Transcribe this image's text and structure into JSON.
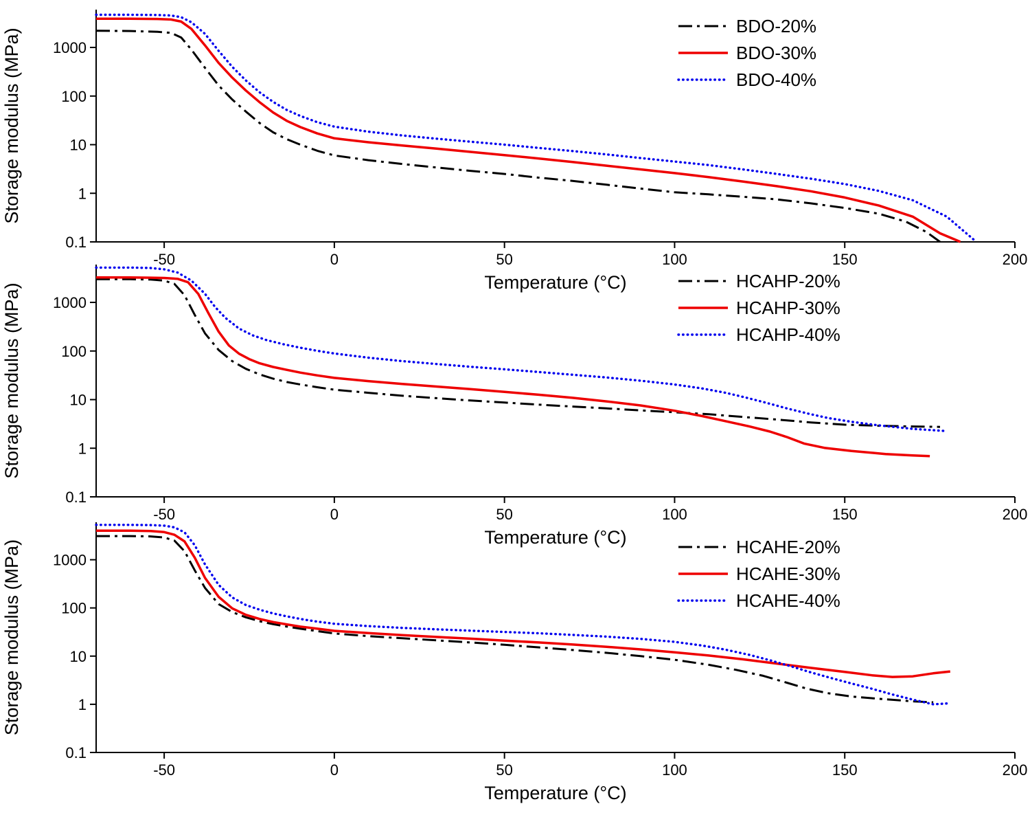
{
  "figure": {
    "background": "#ffffff",
    "axis_color": "#000000"
  },
  "chart_data": [
    {
      "type": "line",
      "title": "",
      "xlabel": "Temperature (°C)",
      "ylabel": "Storage modulus (MPa)",
      "xlim": [
        -70,
        200
      ],
      "ylim": [
        0.1,
        6000
      ],
      "yscale": "log",
      "grid": false,
      "xticks": [
        -50,
        0,
        50,
        100,
        150,
        200
      ],
      "yticks": [
        0.1,
        1,
        10,
        100,
        1000
      ],
      "legend_position": "inside-top-right",
      "series": [
        {
          "name": "BDO-20%",
          "color": "#000000",
          "style": "dashdot",
          "x": [
            -70,
            -60,
            -52,
            -48,
            -45,
            -42,
            -38,
            -34,
            -30,
            -26,
            -22,
            -18,
            -14,
            -10,
            -5,
            0,
            10,
            20,
            30,
            40,
            50,
            60,
            70,
            80,
            90,
            100,
            110,
            120,
            130,
            140,
            150,
            160,
            168,
            174,
            178
          ],
          "y": [
            2200,
            2180,
            2100,
            2000,
            1600,
            900,
            380,
            165,
            85,
            48,
            28,
            18,
            13,
            10,
            7.5,
            6,
            4.8,
            4,
            3.4,
            2.9,
            2.5,
            2.1,
            1.8,
            1.5,
            1.25,
            1.05,
            0.95,
            0.85,
            0.75,
            0.62,
            0.5,
            0.38,
            0.26,
            0.16,
            0.1
          ]
        },
        {
          "name": "BDO-30%",
          "color": "#ee0000",
          "style": "solid",
          "x": [
            -70,
            -60,
            -52,
            -48,
            -45,
            -42,
            -38,
            -34,
            -30,
            -26,
            -22,
            -18,
            -14,
            -10,
            -5,
            0,
            10,
            20,
            30,
            40,
            50,
            60,
            70,
            80,
            90,
            100,
            110,
            120,
            130,
            140,
            150,
            160,
            170,
            178,
            184
          ],
          "y": [
            3900,
            3900,
            3850,
            3750,
            3400,
            2400,
            1100,
            480,
            240,
            130,
            75,
            46,
            31,
            23,
            17,
            13.5,
            11.2,
            9.6,
            8.3,
            7.1,
            6.1,
            5.2,
            4.4,
            3.7,
            3.1,
            2.6,
            2.15,
            1.75,
            1.4,
            1.1,
            0.82,
            0.56,
            0.33,
            0.15,
            0.1
          ]
        },
        {
          "name": "BDO-40%",
          "color": "#0000ee",
          "style": "dotted",
          "x": [
            -70,
            -60,
            -52,
            -48,
            -45,
            -42,
            -38,
            -34,
            -30,
            -26,
            -22,
            -18,
            -14,
            -10,
            -5,
            0,
            10,
            20,
            30,
            40,
            50,
            60,
            70,
            80,
            90,
            100,
            110,
            120,
            130,
            140,
            150,
            160,
            170,
            180,
            188
          ],
          "y": [
            4700,
            4700,
            4650,
            4550,
            4200,
            3300,
            1900,
            850,
            400,
            210,
            120,
            76,
            52,
            39,
            29,
            23.5,
            18.5,
            15.5,
            13.3,
            11.5,
            10,
            8.6,
            7.4,
            6.3,
            5.3,
            4.5,
            3.8,
            3.1,
            2.5,
            2,
            1.55,
            1.12,
            0.72,
            0.33,
            0.11
          ]
        }
      ]
    },
    {
      "type": "line",
      "title": "",
      "xlabel": "Temperature (°C)",
      "ylabel": "Storage modulus (MPa)",
      "xlim": [
        -70,
        200
      ],
      "ylim": [
        0.1,
        6000
      ],
      "yscale": "log",
      "grid": false,
      "xticks": [
        -50,
        0,
        50,
        100,
        150,
        200
      ],
      "yticks": [
        0.1,
        1,
        10,
        100,
        1000
      ],
      "legend_position": "inside-top-right",
      "series": [
        {
          "name": "HCAHP-20%",
          "color": "#000000",
          "style": "dashdot",
          "x": [
            -70,
            -60,
            -54,
            -50,
            -47,
            -44,
            -41,
            -38,
            -34,
            -30,
            -26,
            -22,
            -18,
            -14,
            -10,
            -5,
            0,
            10,
            20,
            30,
            40,
            50,
            60,
            70,
            80,
            90,
            100,
            110,
            120,
            130,
            140,
            150,
            160,
            170,
            178
          ],
          "y": [
            3000,
            3000,
            2950,
            2800,
            2400,
            1400,
            550,
            230,
            105,
            62,
            43,
            33,
            27,
            23,
            20.5,
            18,
            16,
            13.8,
            12,
            10.7,
            9.6,
            8.7,
            7.9,
            7.2,
            6.6,
            6,
            5.5,
            5,
            4.4,
            3.9,
            3.4,
            3.05,
            2.9,
            2.8,
            2.75
          ]
        },
        {
          "name": "HCAHP-30%",
          "color": "#ee0000",
          "style": "solid",
          "x": [
            -70,
            -60,
            -54,
            -50,
            -46,
            -43,
            -40,
            -37,
            -34,
            -31,
            -28,
            -25,
            -22,
            -18,
            -14,
            -10,
            -5,
            0,
            10,
            20,
            30,
            40,
            50,
            60,
            70,
            80,
            90,
            100,
            108,
            115,
            122,
            128,
            133,
            138,
            144,
            152,
            162,
            170,
            175
          ],
          "y": [
            3250,
            3250,
            3220,
            3180,
            3050,
            2600,
            1500,
            600,
            250,
            130,
            88,
            68,
            56,
            47,
            41,
            36,
            31.5,
            28,
            24,
            21,
            18.6,
            16.4,
            14.4,
            12.6,
            10.9,
            9.2,
            7.6,
            5.9,
            4.6,
            3.6,
            2.8,
            2.2,
            1.7,
            1.25,
            1.02,
            0.88,
            0.76,
            0.71,
            0.69
          ]
        },
        {
          "name": "HCAHP-40%",
          "color": "#0000ee",
          "style": "dotted",
          "x": [
            -70,
            -60,
            -54,
            -50,
            -46,
            -42,
            -38,
            -35,
            -32,
            -28,
            -24,
            -20,
            -15,
            -10,
            -5,
            0,
            10,
            20,
            30,
            40,
            50,
            60,
            70,
            80,
            90,
            100,
            108,
            115,
            121,
            127,
            133,
            139,
            145,
            152,
            160,
            170,
            180
          ],
          "y": [
            5200,
            5200,
            5100,
            4800,
            4100,
            2800,
            1500,
            800,
            480,
            290,
            210,
            168,
            138,
            117,
            101,
            89,
            73,
            62,
            54,
            47.5,
            42,
            37,
            32.5,
            28.5,
            24.5,
            20.5,
            17,
            13.8,
            11,
            8.6,
            6.6,
            5.2,
            4.2,
            3.5,
            2.95,
            2.5,
            2.25
          ]
        }
      ]
    },
    {
      "type": "line",
      "title": "",
      "xlabel": "Temperature (°C)",
      "ylabel": "Storage modulus (MPa)",
      "xlim": [
        -70,
        200
      ],
      "ylim": [
        0.1,
        6000
      ],
      "yscale": "log",
      "grid": false,
      "xticks": [
        -50,
        0,
        50,
        100,
        150,
        200
      ],
      "yticks": [
        0.1,
        1,
        10,
        100,
        1000
      ],
      "legend_position": "inside-top-right",
      "series": [
        {
          "name": "HCAHE-20%",
          "color": "#000000",
          "style": "dashdot",
          "x": [
            -70,
            -60,
            -54,
            -50,
            -47,
            -44,
            -41,
            -38,
            -34,
            -30,
            -26,
            -22,
            -18,
            -14,
            -10,
            -5,
            0,
            10,
            20,
            30,
            40,
            50,
            60,
            70,
            80,
            90,
            100,
            110,
            118,
            126,
            133,
            139,
            145,
            152,
            160,
            170,
            176
          ],
          "y": [
            3100,
            3100,
            3050,
            2900,
            2500,
            1500,
            600,
            260,
            120,
            82,
            64,
            53,
            46,
            41,
            37,
            33,
            29.5,
            26,
            23.5,
            21.3,
            19.2,
            17.2,
            15.2,
            13.4,
            11.7,
            10,
            8.4,
            6.6,
            5.2,
            3.9,
            2.8,
            2.1,
            1.7,
            1.45,
            1.3,
            1.15,
            1.1
          ]
        },
        {
          "name": "HCAHE-30%",
          "color": "#ee0000",
          "style": "solid",
          "x": [
            -70,
            -60,
            -54,
            -50,
            -47,
            -44,
            -41,
            -38,
            -34,
            -30,
            -26,
            -22,
            -18,
            -14,
            -10,
            -5,
            0,
            10,
            20,
            30,
            40,
            50,
            60,
            70,
            80,
            90,
            100,
            110,
            120,
            130,
            140,
            150,
            158,
            164,
            170,
            176,
            181
          ],
          "y": [
            4000,
            4000,
            3950,
            3750,
            3300,
            2400,
            1100,
            420,
            170,
            98,
            72,
            59,
            51,
            45.5,
            41,
            37,
            33.5,
            30,
            27.2,
            25,
            23,
            21,
            19.2,
            17.4,
            15.6,
            13.8,
            12,
            10.3,
            8.6,
            7,
            5.7,
            4.7,
            4,
            3.7,
            3.8,
            4.4,
            4.8
          ]
        },
        {
          "name": "HCAHE-40%",
          "color": "#0000ee",
          "style": "dotted",
          "x": [
            -70,
            -60,
            -54,
            -50,
            -47,
            -44,
            -41,
            -38,
            -34,
            -30,
            -26,
            -22,
            -18,
            -14,
            -10,
            -5,
            0,
            10,
            20,
            30,
            40,
            50,
            60,
            70,
            80,
            90,
            100,
            108,
            115,
            122,
            128,
            134,
            140,
            146,
            152,
            158,
            164,
            170,
            176,
            181
          ],
          "y": [
            5300,
            5300,
            5250,
            5100,
            4700,
            3700,
            2000,
            800,
            300,
            165,
            115,
            92,
            77,
            67,
            59,
            52,
            47,
            42,
            38.5,
            36,
            33.8,
            31.8,
            29.8,
            27.6,
            25.4,
            22.8,
            19.8,
            16.6,
            13.6,
            10.6,
            8.2,
            6.2,
            4.6,
            3.5,
            2.7,
            2.1,
            1.6,
            1.25,
            1.0,
            1.05
          ]
        }
      ]
    }
  ]
}
